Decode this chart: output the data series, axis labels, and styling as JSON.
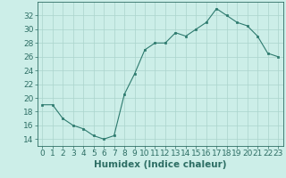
{
  "x": [
    0,
    1,
    2,
    3,
    4,
    5,
    6,
    7,
    8,
    9,
    10,
    11,
    12,
    13,
    14,
    15,
    16,
    17,
    18,
    19,
    20,
    21,
    22,
    23
  ],
  "y": [
    19,
    19,
    17,
    16,
    15.5,
    14.5,
    14,
    14.5,
    20.5,
    23.5,
    27,
    28,
    28,
    29.5,
    29,
    30,
    31,
    33,
    32,
    31,
    30.5,
    29,
    26.5,
    26
  ],
  "line_color": "#2d7a6e",
  "marker_color": "#2d7a6e",
  "bg_color": "#cceee8",
  "grid_color": "#aad4cc",
  "xlabel": "Humidex (Indice chaleur)",
  "ylim": [
    13,
    34
  ],
  "xlim": [
    -0.5,
    23.5
  ],
  "yticks": [
    14,
    16,
    18,
    20,
    22,
    24,
    26,
    28,
    30,
    32
  ],
  "xticks": [
    0,
    1,
    2,
    3,
    4,
    5,
    6,
    7,
    8,
    9,
    10,
    11,
    12,
    13,
    14,
    15,
    16,
    17,
    18,
    19,
    20,
    21,
    22,
    23
  ],
  "font_color": "#2d6e64",
  "xlabel_fontsize": 7.5,
  "tick_fontsize": 6.5
}
